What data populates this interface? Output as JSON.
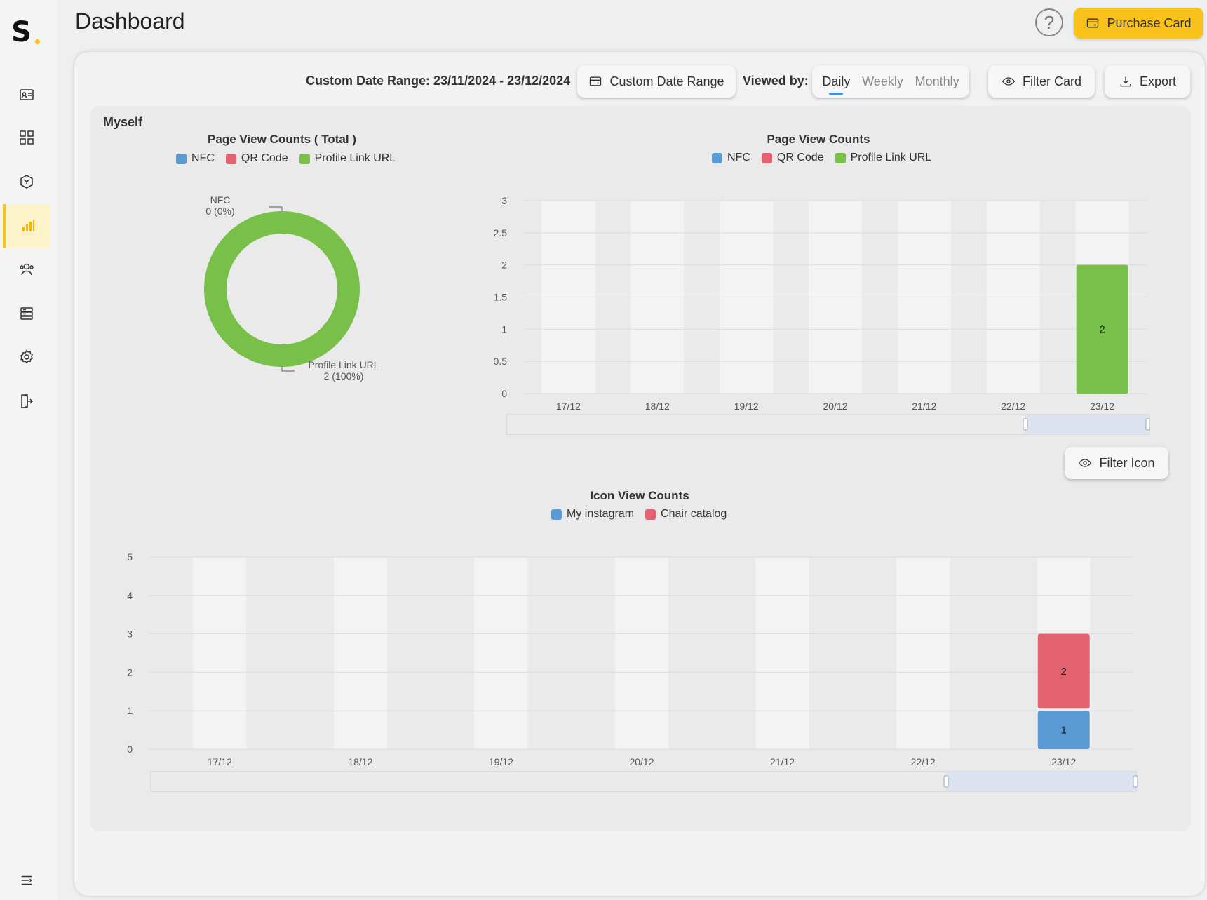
{
  "header": {
    "title": "Dashboard",
    "help_label": "?",
    "purchase_label": "Purchase Card"
  },
  "toolbar": {
    "range_text": "Custom Date Range: 23/11/2024 - 23/12/2024",
    "custom_range_label": "Custom Date Range",
    "viewed_by_label": "Viewed by:",
    "view_options": [
      "Daily",
      "Weekly",
      "Monthly"
    ],
    "active_view": "Daily",
    "filter_card_label": "Filter Card",
    "export_label": "Export"
  },
  "panel": {
    "title": "Myself",
    "filter_icon_label": "Filter Icon"
  },
  "sidebar": {
    "items": [
      {
        "icon": "profile-card-icon"
      },
      {
        "icon": "dashboard-grid-icon"
      },
      {
        "icon": "cube-icon"
      },
      {
        "icon": "bar-chart-icon",
        "active": true
      },
      {
        "icon": "users-icon"
      },
      {
        "icon": "server-icon"
      },
      {
        "icon": "gear-icon"
      },
      {
        "icon": "logout-icon"
      }
    ]
  },
  "colors": {
    "accent": "#f8c21b",
    "nfc": "#5b9bd5",
    "qr": "#e2636f",
    "profile": "#78c04a",
    "instagram": "#5b9bd5",
    "chair": "#e2636f"
  },
  "chart_data": [
    {
      "type": "pie",
      "title": "Page View Counts ( Total )",
      "series": [
        {
          "name": "NFC",
          "value": 0,
          "label": "0 (0%)"
        },
        {
          "name": "QR Code",
          "value": 0,
          "label": ""
        },
        {
          "name": "Profile Link URL",
          "value": 2,
          "label": "2 (100%)"
        }
      ],
      "legend_placement": "top"
    },
    {
      "type": "bar",
      "title": "Page View Counts",
      "categories": [
        "17/12",
        "18/12",
        "19/12",
        "20/12",
        "21/12",
        "22/12",
        "23/12"
      ],
      "series": [
        {
          "name": "NFC",
          "values": [
            0,
            0,
            0,
            0,
            0,
            0,
            0
          ]
        },
        {
          "name": "QR Code",
          "values": [
            0,
            0,
            0,
            0,
            0,
            0,
            0
          ]
        },
        {
          "name": "Profile Link URL",
          "values": [
            0,
            0,
            0,
            0,
            0,
            0,
            2
          ]
        }
      ],
      "yticks": [
        "0",
        "0.5",
        "1",
        "1.5",
        "2",
        "2.5",
        "3"
      ],
      "ylim": [
        0,
        3
      ],
      "stacked": true,
      "legend_placement": "top"
    },
    {
      "type": "bar",
      "title": "Icon View Counts",
      "categories": [
        "17/12",
        "18/12",
        "19/12",
        "20/12",
        "21/12",
        "22/12",
        "23/12"
      ],
      "series": [
        {
          "name": "My instagram",
          "values": [
            0,
            0,
            0,
            0,
            0,
            0,
            1
          ]
        },
        {
          "name": "Chair catalog",
          "values": [
            0,
            0,
            0,
            0,
            0,
            0,
            2
          ]
        }
      ],
      "yticks": [
        "0",
        "1",
        "2",
        "3",
        "4",
        "5"
      ],
      "ylim": [
        0,
        5
      ],
      "stacked": true,
      "legend_placement": "top"
    }
  ]
}
